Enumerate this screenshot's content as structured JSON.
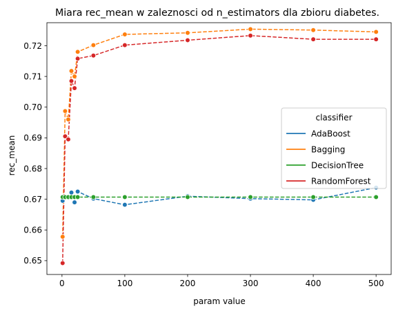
{
  "chart_data": {
    "type": "line",
    "title": "Miara rec_mean w zaleznosci od n_estimators dla zbioru diabetes.",
    "xlabel": "param value",
    "ylabel": "rec_mean",
    "xlim": [
      -24,
      524
    ],
    "ylim": [
      0.6455,
      0.7275
    ],
    "xticks": [
      0,
      100,
      200,
      300,
      400,
      500
    ],
    "yticks": [
      0.65,
      0.66,
      0.67,
      0.68,
      0.69,
      0.7,
      0.71,
      0.72
    ],
    "yticklabels": [
      "0.65",
      "0.66",
      "0.67",
      "0.68",
      "0.69",
      "0.70",
      "0.71",
      "0.72"
    ],
    "grid": false,
    "legend": {
      "title": "classifier",
      "position": "center-right"
    },
    "x": [
      1,
      5,
      10,
      15,
      20,
      25,
      50,
      100,
      200,
      300,
      400,
      500
    ],
    "series": [
      {
        "name": "AdaBoost",
        "color": "#1f77b4",
        "values": [
          0.6695,
          0.6705,
          0.6705,
          0.6722,
          0.669,
          0.6725,
          0.6702,
          0.6682,
          0.671,
          0.6702,
          0.6698,
          0.6738
        ]
      },
      {
        "name": "Bagging",
        "color": "#ff7f0e",
        "values": [
          0.6578,
          0.6987,
          0.696,
          0.7118,
          0.71,
          0.718,
          0.7202,
          0.7237,
          0.7242,
          0.7254,
          0.7251,
          0.7245
        ]
      },
      {
        "name": "DecisionTree",
        "color": "#2ca02c",
        "values": [
          0.6707,
          0.6707,
          0.6707,
          0.6707,
          0.6707,
          0.6707,
          0.6707,
          0.6707,
          0.6707,
          0.6707,
          0.6707,
          0.6707
        ]
      },
      {
        "name": "RandomForest",
        "color": "#d62728",
        "values": [
          0.6492,
          0.6905,
          0.6895,
          0.7085,
          0.7062,
          0.7158,
          0.7168,
          0.7202,
          0.7218,
          0.7233,
          0.7221,
          0.7221
        ]
      }
    ]
  }
}
